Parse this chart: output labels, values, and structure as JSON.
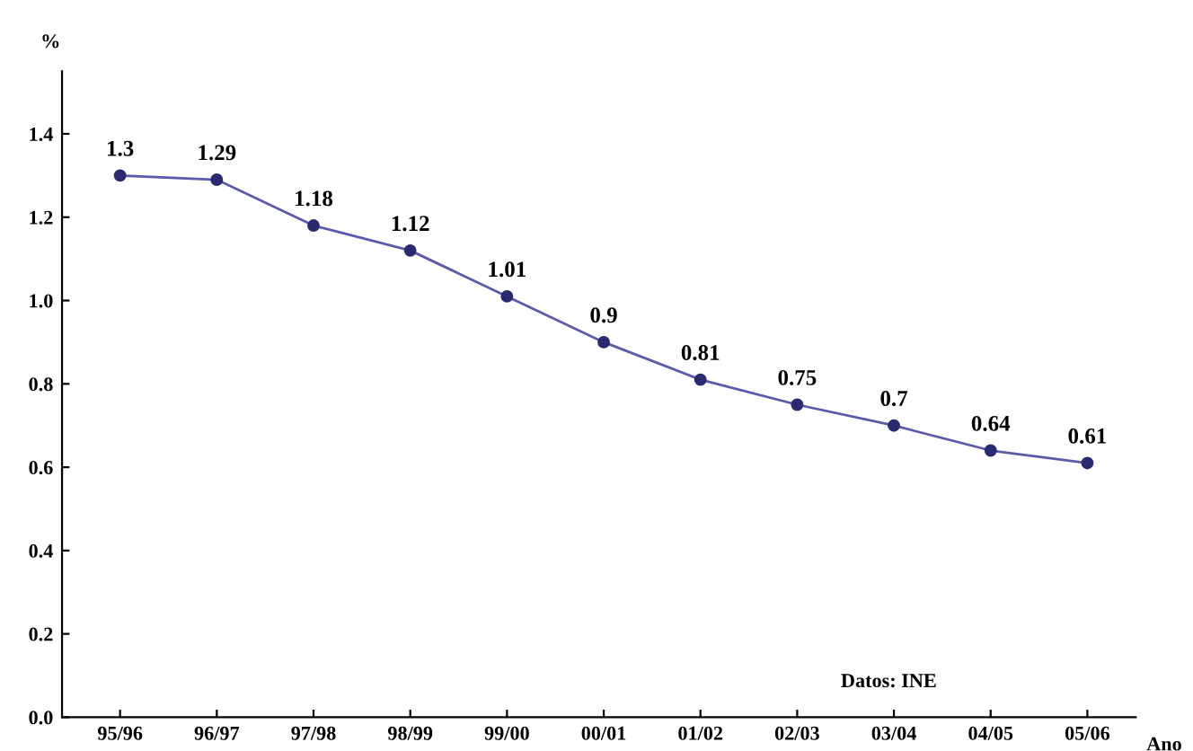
{
  "chart_data": {
    "type": "line",
    "xlabel": "Ano",
    "ylabel": "%",
    "categories": [
      "95/96",
      "96/97",
      "97/98",
      "98/99",
      "99/00",
      "00/01",
      "01/02",
      "02/03",
      "03/04",
      "04/05",
      "05/06"
    ],
    "series": [
      {
        "color": "#5b5bab",
        "values": [
          1.3,
          1.29,
          1.18,
          1.12,
          1.01,
          0.9,
          0.81,
          0.75,
          0.7,
          0.64,
          0.61
        ]
      }
    ],
    "ylim": [
      0,
      1.55
    ],
    "yticks": [
      {
        "value": 0,
        "label": "0.0"
      },
      0.2,
      0.4,
      0.6,
      0.8,
      {
        "value": 1,
        "label": "1.0"
      },
      1.2,
      1.4
    ],
    "data_labels": true,
    "grid": false,
    "legend": false,
    "marker": "circle",
    "line_style": "solid",
    "annotations": [
      "Datos: INE"
    ]
  }
}
